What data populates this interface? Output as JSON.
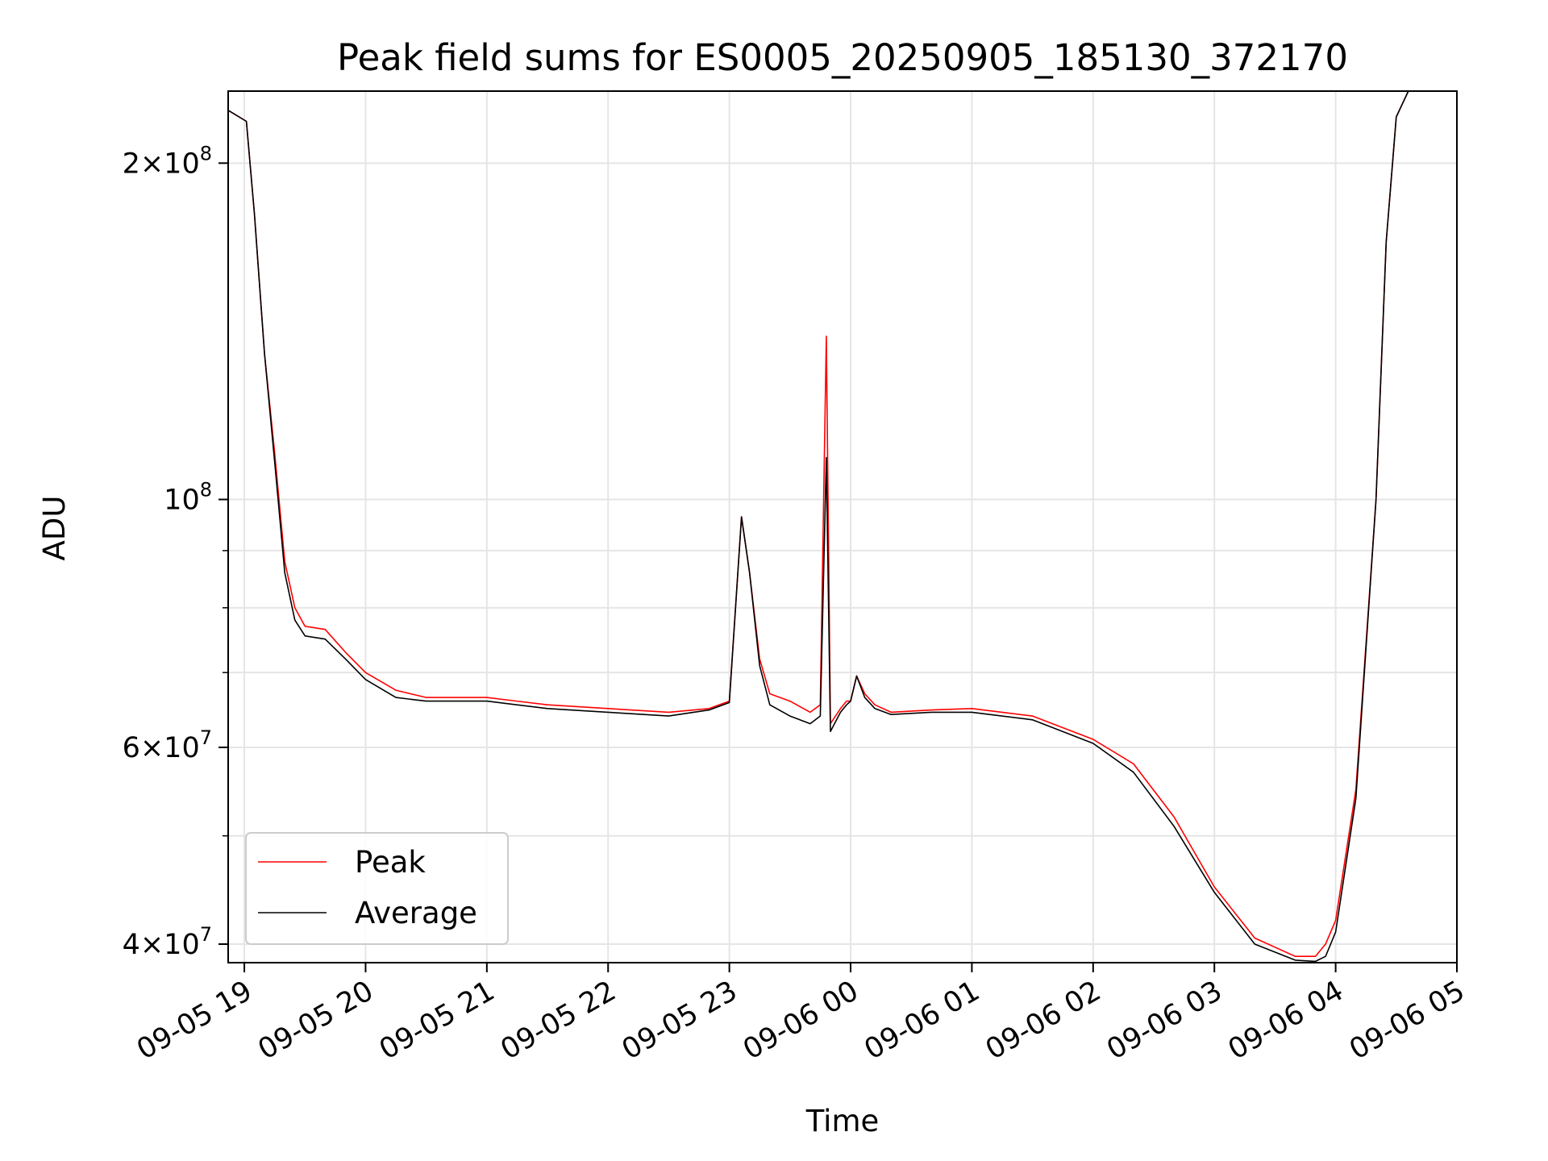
{
  "chart_data": {
    "type": "line",
    "title": "Peak field sums for ES0005_20250905_185130_372170",
    "xlabel": "Time",
    "ylabel": "ADU",
    "yscale": "log",
    "ylim": [
      38500000,
      232000000
    ],
    "xlim": [
      "2025-09-05 18:52",
      "2025-09-06 05:00"
    ],
    "grid": true,
    "legend_position": "lower-left",
    "x_ticks": [
      "09-05 19",
      "09-05 20",
      "09-05 21",
      "09-05 22",
      "09-05 23",
      "09-06 00",
      "09-06 01",
      "09-06 02",
      "09-06 03",
      "09-06 04",
      "09-06 05"
    ],
    "y_ticks": [
      {
        "value": 200000000,
        "mantissa": "2",
        "exponent": "8"
      },
      {
        "value": 100000000,
        "mantissa": "",
        "exponent": "8"
      },
      {
        "value": 60000000,
        "mantissa": "6",
        "exponent": "7"
      },
      {
        "value": 40000000,
        "mantissa": "4",
        "exponent": "7"
      }
    ],
    "y_minor_ticks": [
      300000000,
      90000000,
      80000000,
      70000000,
      50000000
    ],
    "series": [
      {
        "name": "Peak",
        "color": "#ff0000",
        "x": [
          "2025-09-05 18:52",
          "2025-09-05 19:01",
          "2025-09-05 19:05",
          "2025-09-05 19:10",
          "2025-09-05 19:15",
          "2025-09-05 19:20",
          "2025-09-05 19:25",
          "2025-09-05 19:30",
          "2025-09-05 19:40",
          "2025-09-05 19:50",
          "2025-09-05 20:00",
          "2025-09-05 20:15",
          "2025-09-05 20:30",
          "2025-09-05 21:00",
          "2025-09-05 21:30",
          "2025-09-05 22:00",
          "2025-09-05 22:30",
          "2025-09-05 22:50",
          "2025-09-05 23:00",
          "2025-09-05 23:06",
          "2025-09-05 23:10",
          "2025-09-05 23:15",
          "2025-09-05 23:20",
          "2025-09-05 23:30",
          "2025-09-05 23:40",
          "2025-09-05 23:45",
          "2025-09-05 23:48",
          "2025-09-05 23:50",
          "2025-09-05 23:55",
          "2025-09-05 23:58",
          "2025-09-06 00:00",
          "2025-09-06 00:03",
          "2025-09-06 00:07",
          "2025-09-06 00:12",
          "2025-09-06 00:20",
          "2025-09-06 00:40",
          "2025-09-06 01:00",
          "2025-09-06 01:30",
          "2025-09-06 02:00",
          "2025-09-06 02:20",
          "2025-09-06 02:40",
          "2025-09-06 03:00",
          "2025-09-06 03:20",
          "2025-09-06 03:40",
          "2025-09-06 03:50",
          "2025-09-06 03:55",
          "2025-09-06 04:00",
          "2025-09-06 04:10",
          "2025-09-06 04:20",
          "2025-09-06 04:25",
          "2025-09-06 04:30",
          "2025-09-06 04:36",
          "2025-09-06 04:40",
          "2025-09-06 05:00"
        ],
        "values": [
          223000000,
          218000000,
          180000000,
          135000000,
          110000000,
          88000000,
          80000000,
          77000000,
          76500000,
          73000000,
          70000000,
          67500000,
          66500000,
          66500000,
          65500000,
          65000000,
          64500000,
          65000000,
          66000000,
          96500000,
          86000000,
          72000000,
          67000000,
          66000000,
          64500000,
          65500000,
          140000000,
          63000000,
          65000000,
          66000000,
          66000000,
          69500000,
          67000000,
          65500000,
          64500000,
          64800000,
          65000000,
          64000000,
          61000000,
          58000000,
          52000000,
          45000000,
          40500000,
          39000000,
          39000000,
          40000000,
          42000000,
          55000000,
          100000000,
          170000000,
          220000000,
          232000000,
          232000000,
          232000000
        ]
      },
      {
        "name": "Average",
        "color": "#000000",
        "x": [
          "2025-09-05 18:52",
          "2025-09-05 19:01",
          "2025-09-05 19:05",
          "2025-09-05 19:10",
          "2025-09-05 19:15",
          "2025-09-05 19:20",
          "2025-09-05 19:25",
          "2025-09-05 19:30",
          "2025-09-05 19:40",
          "2025-09-05 19:50",
          "2025-09-05 20:00",
          "2025-09-05 20:15",
          "2025-09-05 20:30",
          "2025-09-05 21:00",
          "2025-09-05 21:30",
          "2025-09-05 22:00",
          "2025-09-05 22:30",
          "2025-09-05 22:50",
          "2025-09-05 23:00",
          "2025-09-05 23:06",
          "2025-09-05 23:10",
          "2025-09-05 23:15",
          "2025-09-05 23:20",
          "2025-09-05 23:30",
          "2025-09-05 23:40",
          "2025-09-05 23:45",
          "2025-09-05 23:48",
          "2025-09-05 23:50",
          "2025-09-05 23:55",
          "2025-09-05 23:58",
          "2025-09-06 00:00",
          "2025-09-06 00:03",
          "2025-09-06 00:07",
          "2025-09-06 00:12",
          "2025-09-06 00:20",
          "2025-09-06 00:40",
          "2025-09-06 01:00",
          "2025-09-06 01:30",
          "2025-09-06 02:00",
          "2025-09-06 02:20",
          "2025-09-06 02:40",
          "2025-09-06 03:00",
          "2025-09-06 03:20",
          "2025-09-06 03:40",
          "2025-09-06 03:50",
          "2025-09-06 03:55",
          "2025-09-06 04:00",
          "2025-09-06 04:10",
          "2025-09-06 04:20",
          "2025-09-06 04:25",
          "2025-09-06 04:30",
          "2025-09-06 04:36",
          "2025-09-06 04:40",
          "2025-09-06 05:00"
        ],
        "values": [
          223000000,
          218000000,
          180000000,
          135000000,
          108000000,
          86000000,
          78000000,
          75500000,
          75000000,
          72000000,
          69000000,
          66500000,
          66000000,
          66000000,
          65000000,
          64500000,
          64000000,
          64800000,
          65800000,
          96500000,
          86000000,
          71000000,
          65500000,
          64000000,
          63000000,
          64000000,
          109000000,
          62000000,
          64500000,
          65500000,
          66000000,
          69500000,
          66500000,
          65000000,
          64200000,
          64500000,
          64500000,
          63500000,
          60500000,
          57000000,
          51000000,
          44500000,
          40000000,
          38700000,
          38600000,
          39000000,
          41000000,
          54000000,
          100000000,
          170000000,
          220000000,
          232000000,
          232000000,
          232000000
        ]
      }
    ]
  }
}
